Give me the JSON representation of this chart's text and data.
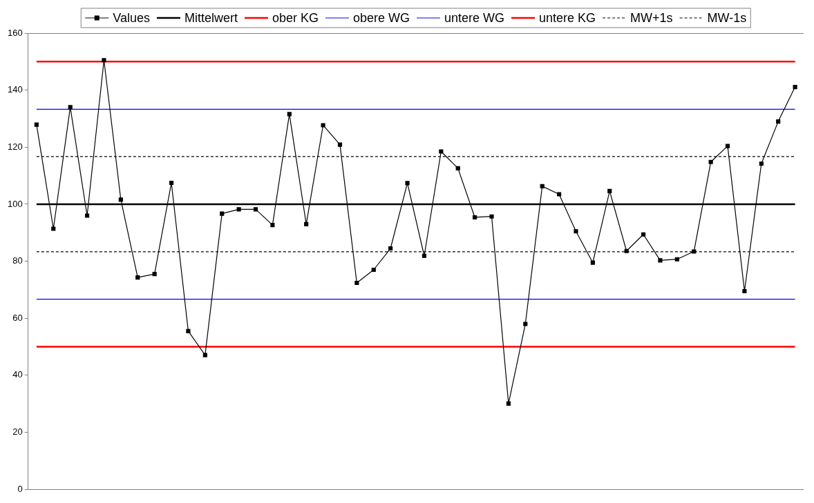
{
  "chart_data": {
    "type": "line",
    "categories": [
      null,
      null,
      null,
      null,
      null,
      null,
      null,
      null,
      null,
      null,
      null,
      null,
      null,
      null,
      null,
      null,
      null,
      null,
      null,
      null,
      null,
      null,
      null,
      null,
      null,
      null,
      null,
      null,
      null,
      null,
      null,
      null,
      null,
      null,
      null,
      null,
      null,
      null,
      null,
      null,
      null,
      null,
      null,
      null,
      null,
      null
    ],
    "series": [
      {
        "name": "Values",
        "color": "#000000",
        "marker": "square",
        "values": [
          127.9,
          91.4,
          134.0,
          96.0,
          150.5,
          101.6,
          74.3,
          75.5,
          107.5,
          55.5,
          47.1,
          96.7,
          98.2,
          98.2,
          92.7,
          131.6,
          93.0,
          127.7,
          120.9,
          72.4,
          77.0,
          84.5,
          107.4,
          81.9,
          118.5,
          112.6,
          95.4,
          95.7,
          30.1,
          58.0,
          106.3,
          103.5,
          90.5,
          79.5,
          104.6,
          83.6,
          89.4,
          80.3,
          80.7,
          83.4,
          114.8,
          120.4,
          69.5,
          114.2,
          129.0,
          141.1
        ]
      },
      {
        "name": "Mittelwert",
        "color": "#000000",
        "marker": "none",
        "values": [
          100,
          100,
          100,
          100,
          100,
          100,
          100,
          100,
          100,
          100,
          100,
          100,
          100,
          100,
          100,
          100,
          100,
          100,
          100,
          100,
          100,
          100,
          100,
          100,
          100,
          100,
          100,
          100,
          100,
          100,
          100,
          100,
          100,
          100,
          100,
          100,
          100,
          100,
          100,
          100,
          100,
          100,
          100,
          100,
          100,
          100
        ]
      },
      {
        "name": "ober KG",
        "color": "#ff0000",
        "marker": "none",
        "values": [
          150,
          150,
          150,
          150,
          150,
          150,
          150,
          150,
          150,
          150,
          150,
          150,
          150,
          150,
          150,
          150,
          150,
          150,
          150,
          150,
          150,
          150,
          150,
          150,
          150,
          150,
          150,
          150,
          150,
          150,
          150,
          150,
          150,
          150,
          150,
          150,
          150,
          150,
          150,
          150,
          150,
          150,
          150,
          150,
          150,
          150
        ]
      },
      {
        "name": "obere WG",
        "color": "#0000ff",
        "marker": "none",
        "values": [
          133.3,
          133.3,
          133.3,
          133.3,
          133.3,
          133.3,
          133.3,
          133.3,
          133.3,
          133.3,
          133.3,
          133.3,
          133.3,
          133.3,
          133.3,
          133.3,
          133.3,
          133.3,
          133.3,
          133.3,
          133.3,
          133.3,
          133.3,
          133.3,
          133.3,
          133.3,
          133.3,
          133.3,
          133.3,
          133.3,
          133.3,
          133.3,
          133.3,
          133.3,
          133.3,
          133.3,
          133.3,
          133.3,
          133.3,
          133.3,
          133.3,
          133.3,
          133.3,
          133.3,
          133.3,
          133.3
        ]
      },
      {
        "name": "untere WG",
        "color": "#0000ff",
        "marker": "none",
        "values": [
          66.7,
          66.7,
          66.7,
          66.7,
          66.7,
          66.7,
          66.7,
          66.7,
          66.7,
          66.7,
          66.7,
          66.7,
          66.7,
          66.7,
          66.7,
          66.7,
          66.7,
          66.7,
          66.7,
          66.7,
          66.7,
          66.7,
          66.7,
          66.7,
          66.7,
          66.7,
          66.7,
          66.7,
          66.7,
          66.7,
          66.7,
          66.7,
          66.7,
          66.7,
          66.7,
          66.7,
          66.7,
          66.7,
          66.7,
          66.7,
          66.7,
          66.7,
          66.7,
          66.7,
          66.7,
          66.7
        ]
      },
      {
        "name": "untere KG",
        "color": "#ff0000",
        "marker": "none",
        "values": [
          50,
          50,
          50,
          50,
          50,
          50,
          50,
          50,
          50,
          50,
          50,
          50,
          50,
          50,
          50,
          50,
          50,
          50,
          50,
          50,
          50,
          50,
          50,
          50,
          50,
          50,
          50,
          50,
          50,
          50,
          50,
          50,
          50,
          50,
          50,
          50,
          50,
          50,
          50,
          50,
          50,
          50,
          50,
          50,
          50,
          50
        ]
      },
      {
        "name": "MW+1s",
        "color": "#000000",
        "marker": "none",
        "line_style": "dashed",
        "values": [
          116.7,
          116.7,
          116.7,
          116.7,
          116.7,
          116.7,
          116.7,
          116.7,
          116.7,
          116.7,
          116.7,
          116.7,
          116.7,
          116.7,
          116.7,
          116.7,
          116.7,
          116.7,
          116.7,
          116.7,
          116.7,
          116.7,
          116.7,
          116.7,
          116.7,
          116.7,
          116.7,
          116.7,
          116.7,
          116.7,
          116.7,
          116.7,
          116.7,
          116.7,
          116.7,
          116.7,
          116.7,
          116.7,
          116.7,
          116.7,
          116.7,
          116.7,
          116.7,
          116.7,
          116.7,
          116.7
        ]
      },
      {
        "name": "MW-1s",
        "color": "#000000",
        "marker": "none",
        "line_style": "dashed",
        "values": [
          83.3,
          83.3,
          83.3,
          83.3,
          83.3,
          83.3,
          83.3,
          83.3,
          83.3,
          83.3,
          83.3,
          83.3,
          83.3,
          83.3,
          83.3,
          83.3,
          83.3,
          83.3,
          83.3,
          83.3,
          83.3,
          83.3,
          83.3,
          83.3,
          83.3,
          83.3,
          83.3,
          83.3,
          83.3,
          83.3,
          83.3,
          83.3,
          83.3,
          83.3,
          83.3,
          83.3,
          83.3,
          83.3,
          83.3,
          83.3,
          83.3,
          83.3,
          83.3,
          83.3,
          83.3,
          83.3
        ]
      }
    ],
    "ylim": [
      0,
      160
    ],
    "yticks": [
      0,
      20,
      40,
      60,
      80,
      100,
      120,
      140,
      160
    ],
    "tick_labels": "y",
    "grid": false,
    "legend": "top"
  }
}
